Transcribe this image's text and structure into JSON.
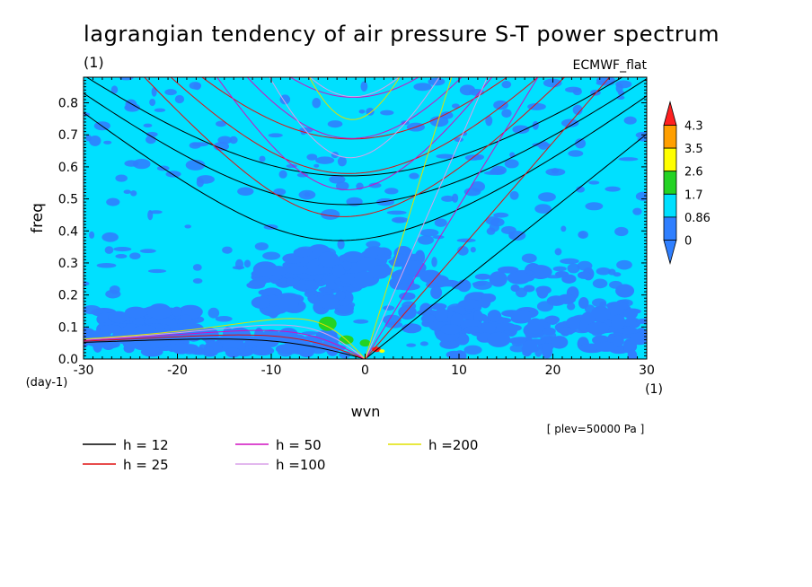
{
  "title": "lagrangian tendency of air pressure S-T power spectrum",
  "subtitle": "(1)",
  "model": "ECMWF_flat",
  "note": "[ plev=50000 Pa ]",
  "chart_data": {
    "type": "heatmap",
    "title": "lagrangian tendency of air pressure S-T power spectrum",
    "xlabel": "wvn",
    "ylabel": "freq",
    "x_unit": "(1)",
    "y_unit": "(day-1)",
    "xlim": [
      -30,
      30
    ],
    "ylim": [
      0,
      0.88
    ],
    "x_ticks": [
      -30,
      -20,
      -10,
      0,
      10,
      20,
      30
    ],
    "y_ticks": [
      0.0,
      0.1,
      0.2,
      0.3,
      0.4,
      0.5,
      0.6,
      0.7,
      0.8
    ],
    "colorbar": {
      "levels": [
        "0",
        "0.86",
        "1.7",
        "2.6",
        "3.5",
        "4.3"
      ],
      "colors": [
        "#2f7fff",
        "#00e0ff",
        "#24d324",
        "#ffff00",
        "#ff9f00",
        "#ff2020"
      ]
    },
    "legend": [
      {
        "label": "h = 12",
        "h": 12,
        "color": "#000000"
      },
      {
        "label": "h = 25",
        "h": 25,
        "color": "#e01010"
      },
      {
        "label": "h = 50",
        "h": 50,
        "color": "#d010c0"
      },
      {
        "label": "h =100",
        "h": 100,
        "color": "#d8a0e8"
      },
      {
        "label": "h =200",
        "h": 200,
        "color": "#e0e000"
      }
    ]
  }
}
